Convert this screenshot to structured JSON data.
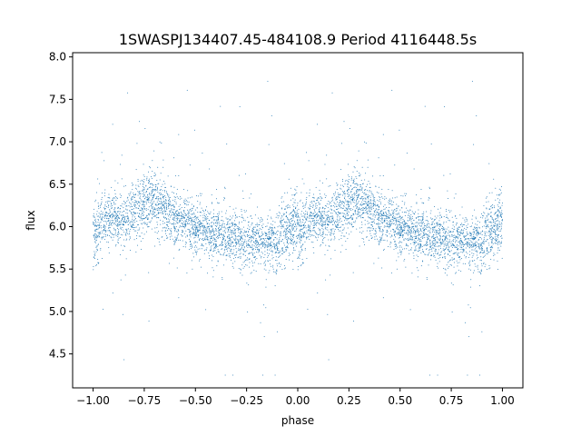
{
  "chart_data": {
    "type": "scatter",
    "title": "1SWASPJ134407.45-484108.9 Period 4116448.5s",
    "xlabel": "phase",
    "ylabel": "flux",
    "xlim": [
      -1.1,
      1.1
    ],
    "ylim": [
      4.1,
      8.05
    ],
    "x_ticks": [
      -1.0,
      -0.75,
      -0.5,
      -0.25,
      0.0,
      0.25,
      0.5,
      0.75,
      1.0
    ],
    "x_tick_labels": [
      "−1.00",
      "−0.75",
      "−0.50",
      "−0.25",
      "0.00",
      "0.25",
      "0.50",
      "0.75",
      "1.00"
    ],
    "y_ticks": [
      4.5,
      5.0,
      5.5,
      6.0,
      6.5,
      7.0,
      7.5,
      8.0
    ],
    "y_tick_labels": [
      "4.5",
      "5.0",
      "5.5",
      "6.0",
      "6.5",
      "7.0",
      "7.5",
      "8.0"
    ],
    "grid": false,
    "marker_color": "#1f77b4",
    "series": [
      {
        "profile": {
          "phase": [
            0.0,
            0.05,
            0.1,
            0.15,
            0.2,
            0.25,
            0.3,
            0.35,
            0.4,
            0.45,
            0.5,
            0.55,
            0.6,
            0.65,
            0.7,
            0.75,
            0.8,
            0.85,
            0.9,
            0.95,
            1.0
          ],
          "median_flux": [
            5.9,
            6.05,
            6.1,
            6.05,
            6.2,
            6.25,
            6.3,
            6.2,
            6.1,
            6.05,
            6.0,
            5.95,
            5.9,
            5.9,
            5.85,
            5.85,
            5.85,
            5.8,
            5.85,
            5.95,
            6.05
          ],
          "scatter": [
            0.35,
            0.25,
            0.25,
            0.25,
            0.3,
            0.3,
            0.3,
            0.3,
            0.25,
            0.25,
            0.25,
            0.25,
            0.25,
            0.25,
            0.25,
            0.25,
            0.25,
            0.25,
            0.3,
            0.3,
            0.3
          ]
        },
        "point_count_per_cycle": 3000
      }
    ]
  }
}
